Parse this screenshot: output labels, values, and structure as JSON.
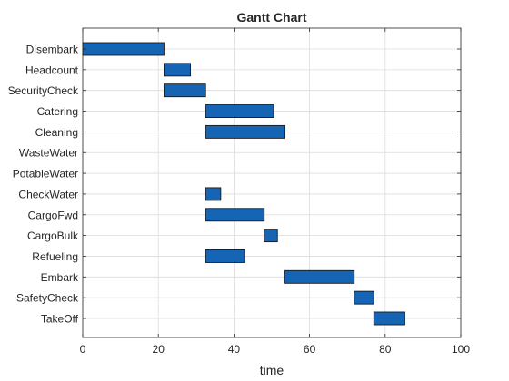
{
  "chart_data": {
    "type": "bar",
    "orientation": "horizontal",
    "subtype": "gantt",
    "title": "Gantt Chart",
    "xlabel": "time",
    "ylabel": "",
    "xlim": [
      0,
      100
    ],
    "xticks": [
      0,
      20,
      40,
      60,
      80,
      100
    ],
    "grid": true,
    "bar_color": "#1664b4",
    "tasks": [
      {
        "label": "Disembark",
        "start": 0,
        "end": 21.5
      },
      {
        "label": "Headcount",
        "start": 21.5,
        "end": 28.5
      },
      {
        "label": "SecurityCheck",
        "start": 21.5,
        "end": 32.5
      },
      {
        "label": "Catering",
        "start": 32.5,
        "end": 50.5
      },
      {
        "label": "Cleaning",
        "start": 32.5,
        "end": 53.5
      },
      {
        "label": "WasteWater",
        "start": null,
        "end": null
      },
      {
        "label": "PotableWater",
        "start": null,
        "end": null
      },
      {
        "label": "CheckWater",
        "start": 32.5,
        "end": 36.5
      },
      {
        "label": "CargoFwd",
        "start": 32.5,
        "end": 48
      },
      {
        "label": "CargoBulk",
        "start": 48,
        "end": 51.5
      },
      {
        "label": "Refueling",
        "start": 32.5,
        "end": 42.8
      },
      {
        "label": "Embark",
        "start": 53.5,
        "end": 71.8
      },
      {
        "label": "SafetyCheck",
        "start": 71.8,
        "end": 77
      },
      {
        "label": "TakeOff",
        "start": 77,
        "end": 85.2
      }
    ]
  }
}
